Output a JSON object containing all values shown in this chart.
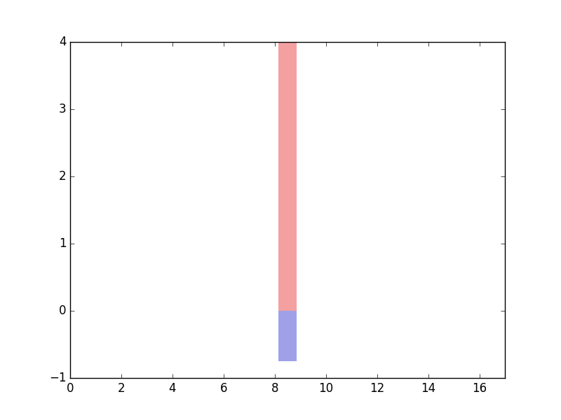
{
  "xlim": [
    0,
    17
  ],
  "ylim": [
    -1,
    4
  ],
  "xticks": [
    0,
    2,
    4,
    6,
    8,
    10,
    12,
    14,
    16
  ],
  "yticks": [
    -1,
    0,
    1,
    2,
    3,
    4
  ],
  "bar_x": 8.5,
  "bar_width": 0.7,
  "positive_bar_height": 4.0,
  "positive_bar_color": "#f4a0a0",
  "negative_bar_depth": -0.75,
  "negative_bar_color": "#a0a0e8",
  "background_color": "#ffffff",
  "figsize": [
    8.0,
    6.0
  ],
  "dpi": 100
}
